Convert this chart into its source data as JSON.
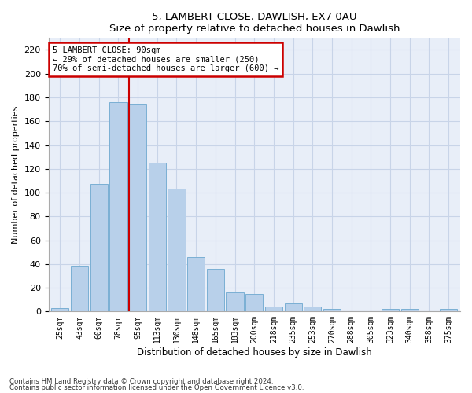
{
  "title1": "5, LAMBERT CLOSE, DAWLISH, EX7 0AU",
  "title2": "Size of property relative to detached houses in Dawlish",
  "xlabel": "Distribution of detached houses by size in Dawlish",
  "ylabel": "Number of detached properties",
  "categories": [
    "25sqm",
    "43sqm",
    "60sqm",
    "78sqm",
    "95sqm",
    "113sqm",
    "130sqm",
    "148sqm",
    "165sqm",
    "183sqm",
    "200sqm",
    "218sqm",
    "235sqm",
    "253sqm",
    "270sqm",
    "288sqm",
    "305sqm",
    "323sqm",
    "340sqm",
    "358sqm",
    "375sqm"
  ],
  "values": [
    3,
    38,
    107,
    176,
    175,
    125,
    103,
    46,
    36,
    16,
    15,
    4,
    7,
    4,
    2,
    0,
    0,
    2,
    2,
    0,
    2
  ],
  "bar_color": "#b8d0ea",
  "bar_edge_color": "#7aafd4",
  "annotation_line1": "5 LAMBERT CLOSE: 90sqm",
  "annotation_line2": "← 29% of detached houses are smaller (250)",
  "annotation_line3": "70% of semi-detached houses are larger (600) →",
  "annotation_box_color": "#ffffff",
  "annotation_box_edge": "#cc0000",
  "vline_color": "#cc0000",
  "vline_x": 3.57,
  "ylim": [
    0,
    230
  ],
  "yticks": [
    0,
    20,
    40,
    60,
    80,
    100,
    120,
    140,
    160,
    180,
    200,
    220
  ],
  "grid_color": "#c8d4e8",
  "background_color": "#e8eef8",
  "footer1": "Contains HM Land Registry data © Crown copyright and database right 2024.",
  "footer2": "Contains public sector information licensed under the Open Government Licence v3.0."
}
